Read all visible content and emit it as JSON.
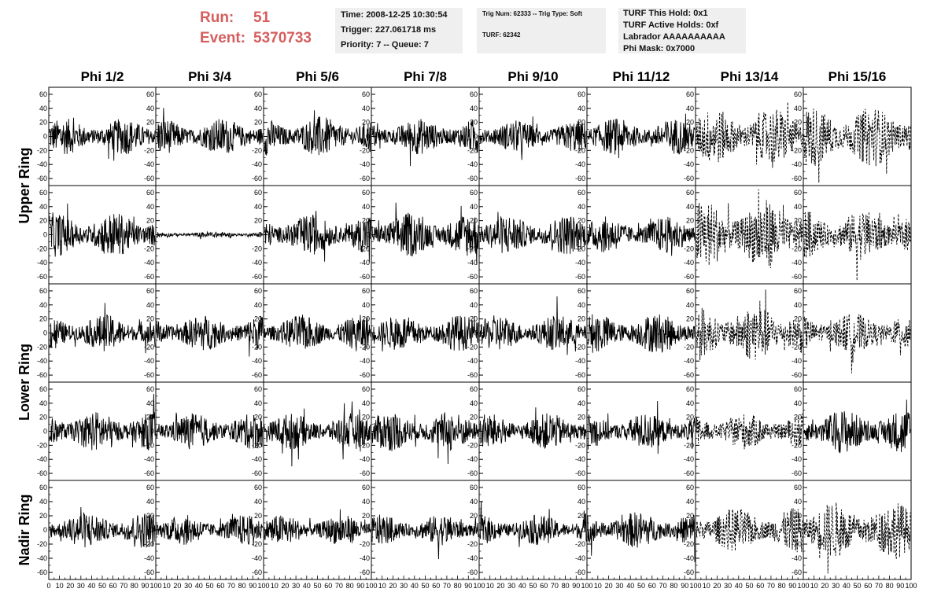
{
  "header": {
    "run_label": "Run:",
    "run_value": "51",
    "event_label": "Event:",
    "event_value": "5370733"
  },
  "info_time": {
    "time": "Time: 2008-12-25 10:30:54",
    "trigger": "Trigger: 227.061718 ms",
    "priority": "Priority: 7 -- Queue: 7"
  },
  "info_trig": {
    "trig": "Trig Num: 62333 -- Trig Type: Soft",
    "turf": "TURF: 62342"
  },
  "info_turf": {
    "this_hold": "TURF This Hold: 0x1",
    "active_holds": "TURF Active Holds: 0xf",
    "labrador": "Labrador AAAAAAAAAA",
    "phi_mask": "Phi Mask: 0x7000"
  },
  "colors": {
    "accent": "#d65d5d",
    "panel": "#efefef",
    "trace": "#000000"
  },
  "chart_data": {
    "type": "line",
    "columns": [
      "Phi 1/2",
      "Phi 3/4",
      "Phi 5/6",
      "Phi 7/8",
      "Phi 9/10",
      "Phi 11/12",
      "Phi 13/14",
      "Phi 15/16"
    ],
    "rings": [
      "Upper Ring",
      "Lower Ring",
      "Nadir Ring"
    ],
    "rows_per_ring": [
      2,
      2,
      1
    ],
    "xlim": [
      0,
      100
    ],
    "ylim": [
      -70,
      70
    ],
    "yticks": [
      -60,
      -40,
      -20,
      0,
      20,
      40,
      60
    ],
    "xticks_first": [
      0,
      10,
      20,
      30,
      40,
      50,
      60,
      70,
      80,
      90,
      100
    ],
    "xticks_other": [
      10,
      20,
      30,
      40,
      50,
      60,
      70,
      80,
      90,
      100
    ],
    "amplitude_rows": [
      [
        18,
        18,
        20,
        18,
        16,
        18,
        28,
        30
      ],
      [
        22,
        3,
        20,
        22,
        20,
        18,
        35,
        25
      ],
      [
        18,
        18,
        18,
        18,
        18,
        20,
        28,
        20
      ],
      [
        20,
        18,
        18,
        20,
        18,
        18,
        18,
        22
      ],
      [
        18,
        15,
        15,
        15,
        15,
        18,
        22,
        28
      ]
    ],
    "dashed_columns": [
      6,
      7
    ],
    "solid_exceptions": [
      [
        3,
        7
      ]
    ]
  }
}
